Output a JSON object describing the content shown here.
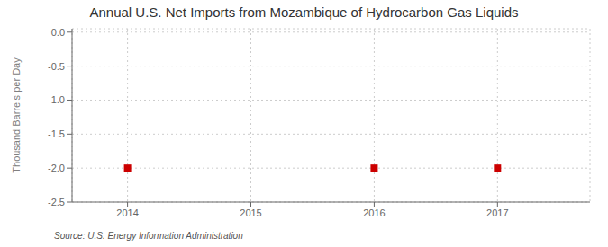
{
  "chart_data": {
    "type": "scatter",
    "title": "Annual U.S. Net Imports from Mozambique of Hydrocarbon Gas Liquids",
    "ylabel": "Thousand Barrels per Day",
    "source": "Source: U.S. Energy Information Administration",
    "x": [
      2014,
      2016,
      2017
    ],
    "values": [
      -2.0,
      -2.0,
      -2.0
    ],
    "color": "#cc0000",
    "marker": "square",
    "xlim": [
      2013.55,
      2017.75
    ],
    "xticks": [
      2014,
      2015,
      2016,
      2017
    ],
    "ylim": [
      -2.5,
      0.05
    ],
    "yticks": [
      {
        "value": 0.0,
        "label": "0.0"
      },
      {
        "value": -0.5,
        "label": "-0.5"
      },
      {
        "value": -1.0,
        "label": "-1.0"
      },
      {
        "value": -1.5,
        "label": "-1.5"
      },
      {
        "value": -2.0,
        "label": "-2.0"
      },
      {
        "value": -2.5,
        "label": "-2.5"
      }
    ],
    "grid": true
  }
}
